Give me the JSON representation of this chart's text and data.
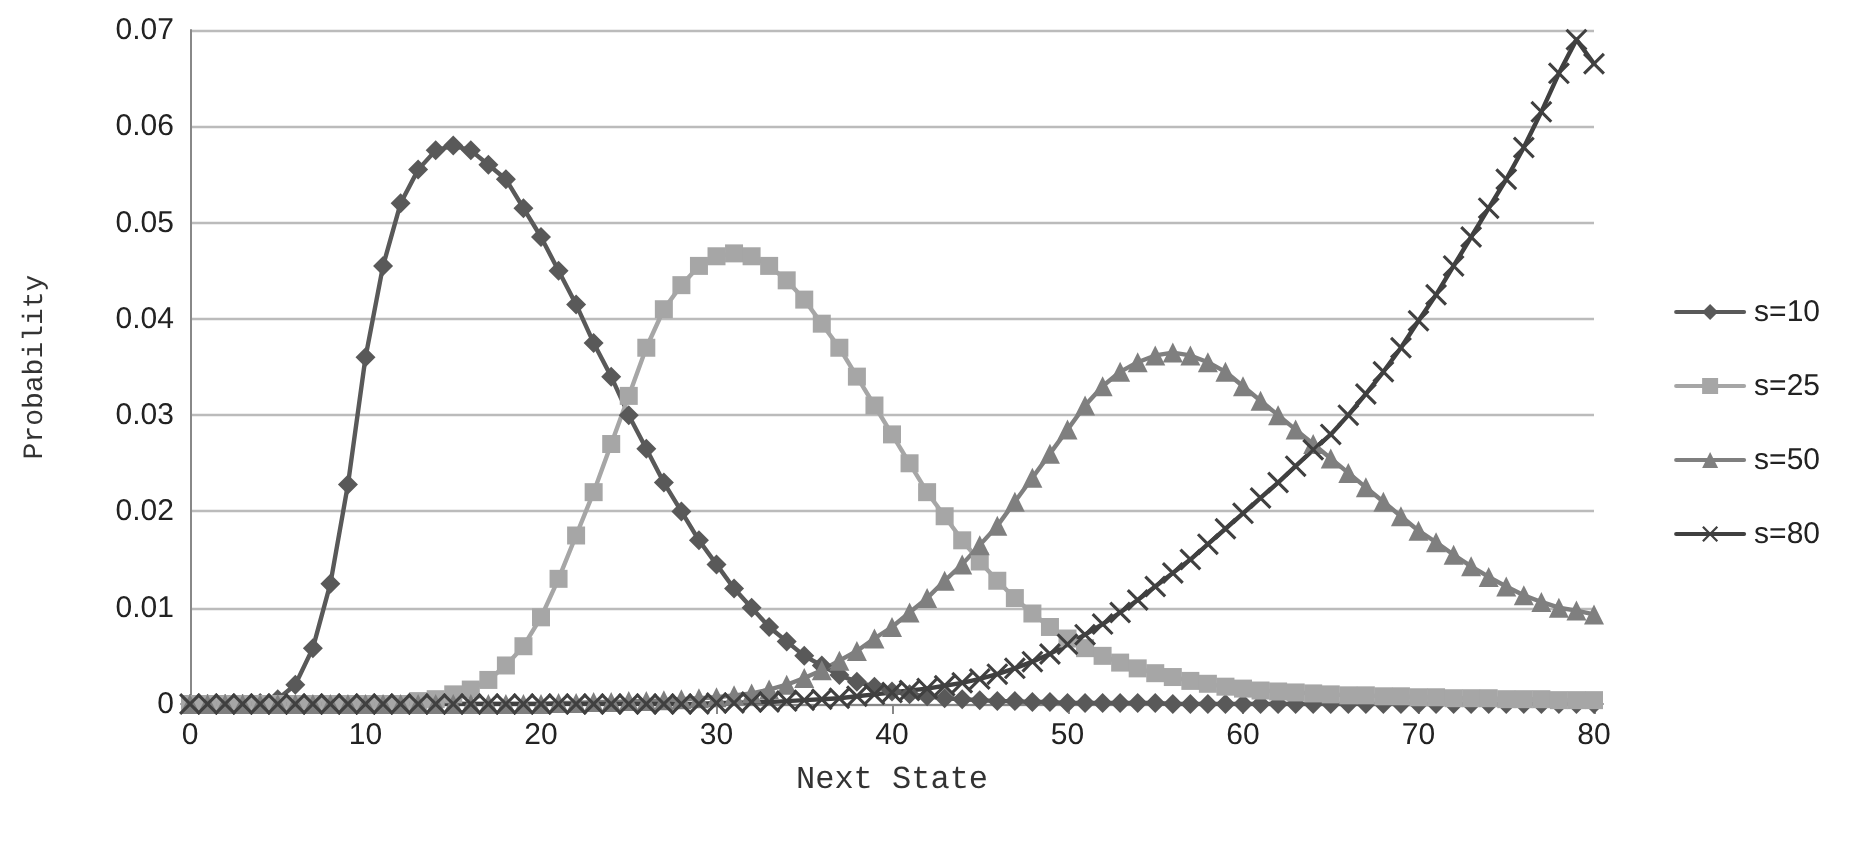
{
  "chart_data": {
    "type": "line",
    "xlabel": "Next State",
    "ylabel": "Probability",
    "x": [
      0,
      1,
      2,
      3,
      4,
      5,
      6,
      7,
      8,
      9,
      10,
      11,
      12,
      13,
      14,
      15,
      16,
      17,
      18,
      19,
      20,
      21,
      22,
      23,
      24,
      25,
      26,
      27,
      28,
      29,
      30,
      31,
      32,
      33,
      34,
      35,
      36,
      37,
      38,
      39,
      40,
      41,
      42,
      43,
      44,
      45,
      46,
      47,
      48,
      49,
      50,
      51,
      52,
      53,
      54,
      55,
      56,
      57,
      58,
      59,
      60,
      61,
      62,
      63,
      64,
      65,
      66,
      67,
      68,
      69,
      70,
      71,
      72,
      73,
      74,
      75,
      76,
      77,
      78,
      79,
      80
    ],
    "series": [
      {
        "name": "s=10",
        "color": "#595959",
        "marker": "diamond",
        "values": [
          0,
          0,
          0,
          0,
          0.0001,
          0.0005,
          0.002,
          0.0058,
          0.0125,
          0.0228,
          0.036,
          0.0455,
          0.052,
          0.0555,
          0.0575,
          0.058,
          0.0575,
          0.056,
          0.0545,
          0.0515,
          0.0485,
          0.045,
          0.0415,
          0.0375,
          0.034,
          0.03,
          0.0265,
          0.023,
          0.02,
          0.017,
          0.0145,
          0.012,
          0.01,
          0.008,
          0.0065,
          0.005,
          0.004,
          0.003,
          0.0023,
          0.0018,
          0.0013,
          0.001,
          0.0008,
          0.0006,
          0.0005,
          0.0004,
          0.0003,
          0.0003,
          0.0002,
          0.0002,
          0.0001,
          0.0001,
          0.0001,
          0.0001,
          0.0001,
          0.0001,
          0,
          0,
          0,
          0,
          0,
          0,
          0,
          0,
          0,
          0,
          0,
          0,
          0,
          0,
          0,
          0,
          0,
          0,
          0,
          0,
          0,
          0,
          0,
          0,
          0
        ]
      },
      {
        "name": "s=25",
        "color": "#a6a6a6",
        "marker": "square",
        "values": [
          0,
          0,
          0,
          0,
          0,
          0,
          0,
          0,
          0,
          0,
          0,
          0,
          0,
          0.0003,
          0.0005,
          0.001,
          0.0015,
          0.0025,
          0.004,
          0.006,
          0.009,
          0.013,
          0.0175,
          0.022,
          0.027,
          0.032,
          0.037,
          0.041,
          0.0435,
          0.0455,
          0.0465,
          0.0468,
          0.0465,
          0.0455,
          0.044,
          0.042,
          0.0395,
          0.037,
          0.034,
          0.031,
          0.028,
          0.025,
          0.022,
          0.0195,
          0.017,
          0.0148,
          0.0128,
          0.011,
          0.0094,
          0.008,
          0.0068,
          0.0058,
          0.005,
          0.0043,
          0.0037,
          0.0032,
          0.0028,
          0.0024,
          0.0021,
          0.0018,
          0.0016,
          0.0014,
          0.0013,
          0.0012,
          0.0011,
          0.001,
          0.0009,
          0.0009,
          0.0008,
          0.0008,
          0.0007,
          0.0007,
          0.0006,
          0.0006,
          0.0006,
          0.0005,
          0.0005,
          0.0005,
          0.0004,
          0.0004,
          0.0004
        ]
      },
      {
        "name": "s=50",
        "color": "#7f7f7f",
        "marker": "triangle",
        "values": [
          0,
          0,
          0,
          0,
          0,
          0,
          0,
          0,
          0,
          0,
          0,
          0,
          0,
          0,
          0,
          0,
          0,
          0,
          0,
          0,
          0,
          0.0001,
          0.0001,
          0.0002,
          0.0002,
          0.0003,
          0.0003,
          0.0004,
          0.0005,
          0.0006,
          0.0007,
          0.0009,
          0.0011,
          0.0015,
          0.002,
          0.0027,
          0.0035,
          0.0045,
          0.0055,
          0.0068,
          0.008,
          0.0095,
          0.011,
          0.0128,
          0.0145,
          0.0165,
          0.0185,
          0.021,
          0.0235,
          0.026,
          0.0285,
          0.031,
          0.033,
          0.0345,
          0.0355,
          0.0362,
          0.0365,
          0.0362,
          0.0355,
          0.0345,
          0.033,
          0.0315,
          0.03,
          0.0285,
          0.027,
          0.0255,
          0.024,
          0.0225,
          0.021,
          0.0195,
          0.018,
          0.0168,
          0.0155,
          0.0143,
          0.0132,
          0.0122,
          0.0113,
          0.0106,
          0.01,
          0.0097,
          0.0093
        ]
      },
      {
        "name": "s=80",
        "color": "#404040",
        "marker": "cross",
        "values": [
          0,
          0,
          0,
          0,
          0,
          0,
          0,
          0,
          0,
          0,
          0,
          0,
          0,
          0,
          0,
          0,
          0,
          0,
          0,
          0,
          0,
          0,
          0,
          0,
          0,
          0,
          0,
          0,
          0,
          0,
          0.0001,
          0.0001,
          0.0002,
          0.0002,
          0.0003,
          0.0004,
          0.0005,
          0.0006,
          0.0008,
          0.001,
          0.0012,
          0.0014,
          0.0016,
          0.0019,
          0.0022,
          0.0026,
          0.0031,
          0.0037,
          0.0044,
          0.0052,
          0.0062,
          0.0072,
          0.0083,
          0.0095,
          0.0108,
          0.0122,
          0.0136,
          0.015,
          0.0166,
          0.0182,
          0.0198,
          0.0214,
          0.023,
          0.0247,
          0.0264,
          0.028,
          0.03,
          0.0322,
          0.0345,
          0.037,
          0.0398,
          0.0425,
          0.0455,
          0.0485,
          0.0515,
          0.0545,
          0.0578,
          0.0615,
          0.0655,
          0.069,
          0.0665
        ]
      }
    ],
    "xlim": [
      0,
      80
    ],
    "xticks": [
      0,
      10,
      20,
      30,
      40,
      50,
      60,
      70,
      80
    ],
    "ylim": [
      0,
      0.07
    ],
    "yticks": [
      0,
      0.01,
      0.02,
      0.03,
      0.04,
      0.05,
      0.06,
      0.07
    ],
    "grid": "y",
    "legend": "right",
    "line_style": "solid"
  }
}
